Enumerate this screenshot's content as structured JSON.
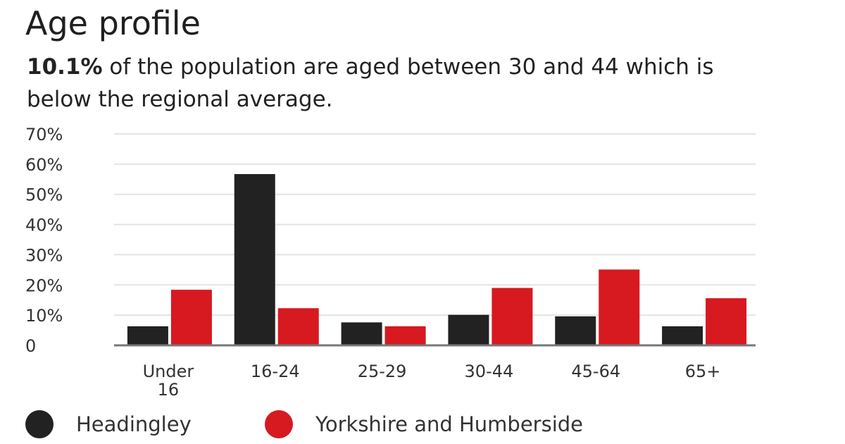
{
  "chart_data": {
    "type": "bar",
    "title": "Age profile",
    "subtitle_highlight": "10.1%",
    "subtitle_rest": " of the population are aged between 30 and 44 which is below the regional average.",
    "categories": [
      [
        "Under",
        "16"
      ],
      [
        "16-24"
      ],
      [
        "25-29"
      ],
      [
        "30-44"
      ],
      [
        "45-64"
      ],
      [
        "65+"
      ]
    ],
    "series": [
      {
        "name": "Headingley",
        "color": "#222222",
        "values": [
          6.3,
          56.7,
          7.6,
          10.1,
          9.6,
          6.3
        ]
      },
      {
        "name": "Yorkshire and Humberside",
        "color": "#d71920",
        "values": [
          18.4,
          12.3,
          6.3,
          19.0,
          25.1,
          15.6
        ]
      }
    ],
    "yticks": [
      0,
      10,
      20,
      30,
      40,
      50,
      60,
      70
    ],
    "ytick_labels": [
      "0",
      "10%",
      "20%",
      "30%",
      "40%",
      "50%",
      "60%",
      "70%"
    ],
    "ylim": [
      0,
      70
    ],
    "xlabel": "",
    "ylabel": "",
    "grid": true,
    "legend_position": "bottom-left"
  }
}
